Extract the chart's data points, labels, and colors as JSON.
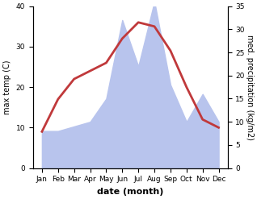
{
  "months": [
    "Jan",
    "Feb",
    "Mar",
    "Apr",
    "May",
    "Jun",
    "Jul",
    "Aug",
    "Sep",
    "Oct",
    "Nov",
    "Dec"
  ],
  "temp": [
    9,
    17,
    22,
    24,
    26,
    32,
    36,
    35,
    29,
    20,
    12,
    10
  ],
  "precip": [
    8,
    8,
    9,
    10,
    15,
    32,
    22,
    36,
    18,
    10,
    16,
    10
  ],
  "temp_color": "#c0393b",
  "precip_fill_color": "#b8c4ed",
  "xlabel": "date (month)",
  "ylabel_left": "max temp (C)",
  "ylabel_right": "med. precipitation (kg/m2)",
  "ylim_left": [
    0,
    40
  ],
  "ylim_right": [
    0,
    35
  ],
  "yticks_left": [
    0,
    10,
    20,
    30,
    40
  ],
  "yticks_right": [
    0,
    5,
    10,
    15,
    20,
    25,
    30,
    35
  ],
  "bg_color": "#ffffff",
  "line_width": 2.0,
  "label_fontsize": 7,
  "tick_fontsize": 6.5
}
